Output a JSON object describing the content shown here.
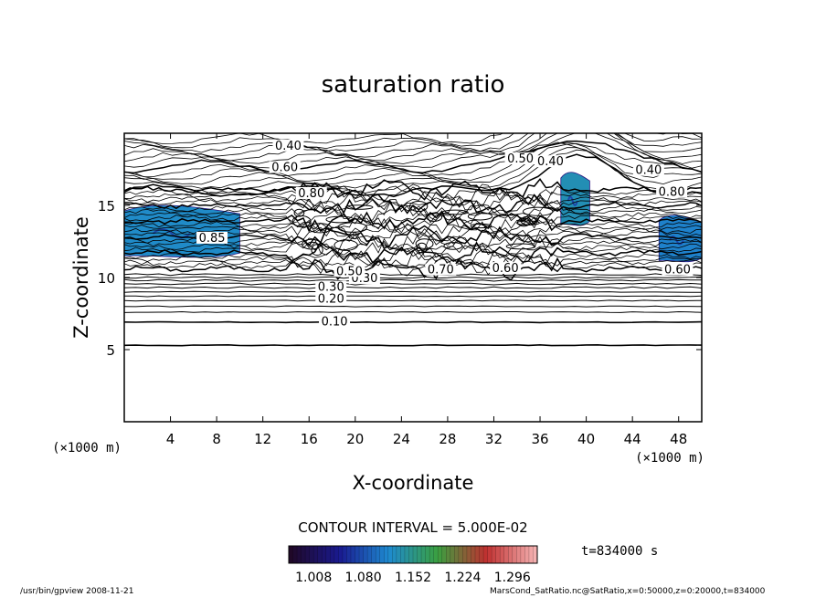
{
  "chart_data": {
    "type": "contour",
    "title": "saturation ratio",
    "xlabel": "X-coordinate",
    "ylabel": "Z-coordinate",
    "x_unit": "(×1000 m)",
    "y_unit": "(×1000 m)",
    "xlim": [
      0,
      50
    ],
    "ylim": [
      0,
      20
    ],
    "x_ticks": [
      4,
      8,
      12,
      16,
      20,
      24,
      28,
      32,
      36,
      40,
      44,
      48
    ],
    "y_ticks": [
      5,
      10,
      15
    ],
    "contour_interval_label": "CONTOUR INTERVAL = 5.000E-02",
    "time_label": "t=834000 s",
    "colorbar": {
      "tick_labels": [
        "1.008",
        "1.080",
        "1.152",
        "1.224",
        "1.296"
      ],
      "min": 0.972,
      "max": 1.332,
      "colors": [
        "#200828",
        "#1a1a90",
        "#1e8ad0",
        "#3aa040",
        "#c03030",
        "#f4b0b0"
      ]
    },
    "contour_labels": [
      {
        "text": "0.10",
        "x": 18.2,
        "y": 6.8
      },
      {
        "text": "0.20",
        "x": 17.9,
        "y": 8.4
      },
      {
        "text": "0.30",
        "x": 17.9,
        "y": 9.2
      },
      {
        "text": "0.30",
        "x": 20.8,
        "y": 9.8
      },
      {
        "text": "0.50",
        "x": 19.5,
        "y": 10.3
      },
      {
        "text": "0.70",
        "x": 27.4,
        "y": 10.4
      },
      {
        "text": "0.60",
        "x": 33.0,
        "y": 10.5
      },
      {
        "text": "0.85",
        "x": 7.6,
        "y": 12.6
      },
      {
        "text": "0.40",
        "x": 14.2,
        "y": 19.0
      },
      {
        "text": "0.60",
        "x": 13.9,
        "y": 17.5
      },
      {
        "text": "0.80",
        "x": 16.2,
        "y": 15.7
      },
      {
        "text": "0.50",
        "x": 34.3,
        "y": 18.1
      },
      {
        "text": "0.40",
        "x": 36.9,
        "y": 17.9
      },
      {
        "text": "0.40",
        "x": 45.4,
        "y": 17.3
      },
      {
        "text": "0.80",
        "x": 47.4,
        "y": 15.8
      },
      {
        "text": "0.60",
        "x": 47.9,
        "y": 10.4
      }
    ],
    "supersaturated_regions": [
      {
        "x_range": [
          0,
          10
        ],
        "z_range": [
          11.3,
          15.2
        ],
        "value_range": [
          1.0,
          1.08
        ]
      },
      {
        "x_range": [
          37.8,
          40.3
        ],
        "z_range": [
          13.5,
          17.5
        ],
        "value_range": [
          1.0,
          1.1
        ]
      },
      {
        "x_range": [
          46.3,
          50
        ],
        "z_range": [
          11.0,
          14.5
        ],
        "value_range": [
          1.0,
          1.06
        ]
      }
    ]
  },
  "footer": {
    "left": "/usr/bin/gpview   2008-11-21",
    "right": "MarsCond_SatRatio.nc@SatRatio,x=0:50000,z=0:20000,t=834000"
  }
}
